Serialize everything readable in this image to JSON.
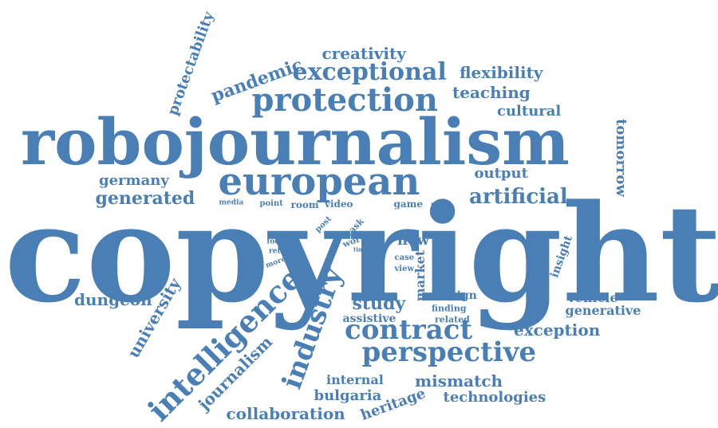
{
  "cloud": {
    "color": "#4a7fb5",
    "words": [
      {
        "text": "copyright",
        "weight": 10,
        "rotation": 0
      },
      {
        "text": "robojournalism",
        "weight": 9,
        "rotation": 0
      },
      {
        "text": "european",
        "weight": 7,
        "rotation": 0
      },
      {
        "text": "protection",
        "weight": 6,
        "rotation": 0
      },
      {
        "text": "intelligence",
        "weight": 5,
        "rotation": -45
      },
      {
        "text": "industry",
        "weight": 5,
        "rotation": -70
      },
      {
        "text": "perspective",
        "weight": 5,
        "rotation": 0
      },
      {
        "text": "contract",
        "weight": 5,
        "rotation": 0
      },
      {
        "text": "exceptional",
        "weight": 4,
        "rotation": 0
      },
      {
        "text": "artificial",
        "weight": 4,
        "rotation": 0
      },
      {
        "text": "generated",
        "weight": 3,
        "rotation": 0
      },
      {
        "text": "pandemic",
        "weight": 3,
        "rotation": -20
      },
      {
        "text": "creativity",
        "weight": 3,
        "rotation": 0
      },
      {
        "text": "flexibility",
        "weight": 3,
        "rotation": 0
      },
      {
        "text": "teaching",
        "weight": 3,
        "rotation": 0
      },
      {
        "text": "cultural",
        "weight": 3,
        "rotation": 0
      },
      {
        "text": "tomorrow",
        "weight": 3,
        "rotation": 90
      },
      {
        "text": "germany",
        "weight": 3,
        "rotation": 0
      },
      {
        "text": "output",
        "weight": 3,
        "rotation": 0
      },
      {
        "text": "protectability",
        "weight": 3,
        "rotation": -70
      },
      {
        "text": "dungeon",
        "weight": 3,
        "rotation": 0
      },
      {
        "text": "university",
        "weight": 3,
        "rotation": -60
      },
      {
        "text": "journalism",
        "weight": 3,
        "rotation": -45
      },
      {
        "text": "study",
        "weight": 3,
        "rotation": 0
      },
      {
        "text": "exception",
        "weight": 3,
        "rotation": 0
      },
      {
        "text": "mismatch",
        "weight": 3,
        "rotation": 0
      },
      {
        "text": "technologies",
        "weight": 3,
        "rotation": 0
      },
      {
        "text": "collaboration",
        "weight": 3,
        "rotation": 0
      },
      {
        "text": "bulgaria",
        "weight": 3,
        "rotation": 0
      },
      {
        "text": "heritage",
        "weight": 3,
        "rotation": -20
      },
      {
        "text": "internal",
        "weight": 2,
        "rotation": 0
      },
      {
        "text": "vehicle",
        "weight": 2,
        "rotation": 0
      },
      {
        "text": "generative",
        "weight": 2,
        "rotation": 0
      },
      {
        "text": "insight",
        "weight": 2,
        "rotation": -70
      },
      {
        "text": "market",
        "weight": 2,
        "rotation": -90
      },
      {
        "text": "new",
        "weight": 2,
        "rotation": 0
      },
      {
        "text": "design",
        "weight": 2,
        "rotation": 0
      },
      {
        "text": "assistive",
        "weight": 2,
        "rotation": 0
      },
      {
        "text": "video",
        "weight": 1,
        "rotation": 0
      },
      {
        "text": "room",
        "weight": 1,
        "rotation": 0
      },
      {
        "text": "game",
        "weight": 1,
        "rotation": 0
      },
      {
        "text": "task",
        "weight": 1,
        "rotation": -45
      },
      {
        "text": "work",
        "weight": 1,
        "rotation": -20
      },
      {
        "text": "post",
        "weight": 1,
        "rotation": -45
      },
      {
        "text": "point",
        "weight": 1,
        "rotation": 0
      },
      {
        "text": "media",
        "weight": 1,
        "rotation": 0
      },
      {
        "text": "many",
        "weight": 1,
        "rotation": 0
      },
      {
        "text": "case",
        "weight": 1,
        "rotation": 0
      },
      {
        "text": "view",
        "weight": 1,
        "rotation": 0
      },
      {
        "text": "finding",
        "weight": 1,
        "rotation": 0
      },
      {
        "text": "related",
        "weight": 1,
        "rotation": 0
      },
      {
        "text": "focus",
        "weight": 1,
        "rotation": 0
      },
      {
        "text": "relies",
        "weight": 1,
        "rotation": 0
      },
      {
        "text": "more",
        "weight": 1,
        "rotation": -20
      },
      {
        "text": "time",
        "weight": 1,
        "rotation": 0
      }
    ]
  }
}
